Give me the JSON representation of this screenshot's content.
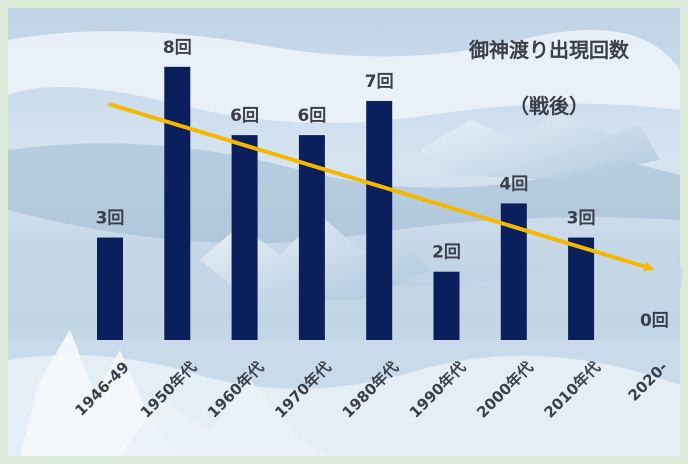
{
  "chart_data": {
    "type": "bar",
    "title": "御神渡り出現回数",
    "subtitle": "（戦後）",
    "categories": [
      "1946-49",
      "1950年代",
      "1960年代",
      "1970年代",
      "1980年代",
      "1990年代",
      "2000年代",
      "2010年代",
      "2020-"
    ],
    "values": [
      3,
      8,
      6,
      6,
      7,
      2,
      4,
      3,
      0
    ],
    "value_labels": [
      "3回",
      "8回",
      "6回",
      "6回",
      "7回",
      "2回",
      "4回",
      "3回",
      "0回"
    ],
    "ylim": [
      0,
      8.2
    ],
    "grid": false,
    "trend": {
      "from_value": 6.9,
      "to_value": 2.1,
      "color": "#F5B800"
    },
    "colors": {
      "bar": "#0A1F5C",
      "text": "#3B3F4A",
      "background": "#C9DCEC"
    }
  }
}
